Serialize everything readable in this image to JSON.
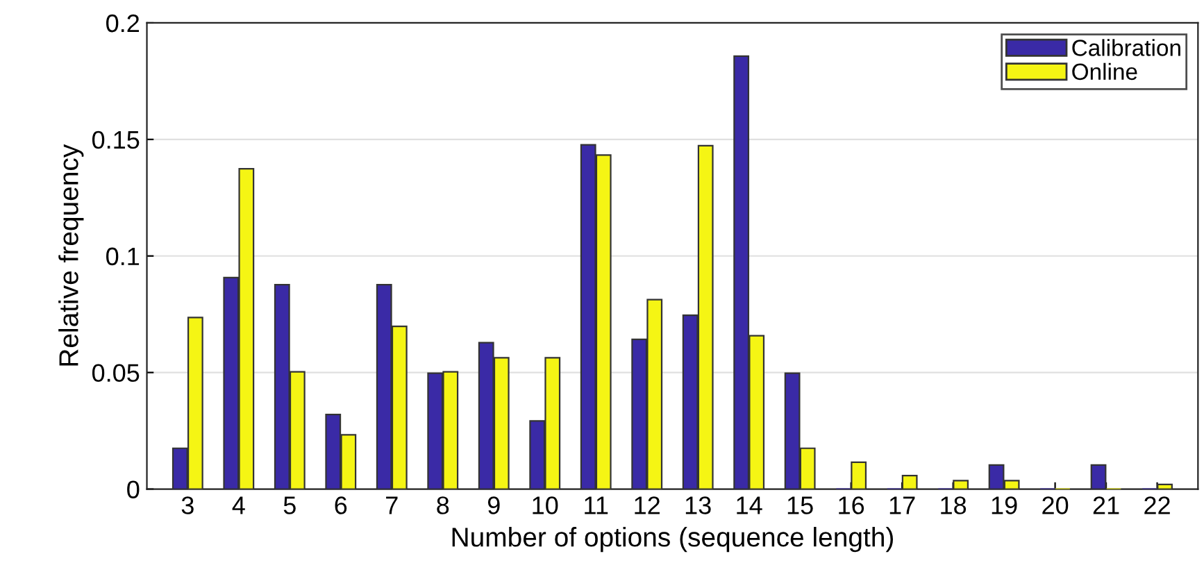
{
  "chart_data": {
    "type": "bar",
    "xlabel": "Number of options (sequence length)",
    "ylabel": "Relative frequency",
    "categories": [
      "3",
      "4",
      "5",
      "6",
      "7",
      "8",
      "9",
      "10",
      "11",
      "12",
      "13",
      "14",
      "15",
      "16",
      "17",
      "18",
      "19",
      "20",
      "21",
      "22"
    ],
    "series": [
      {
        "name": "Calibration",
        "color": "#3a2aa6",
        "values": [
          0.0175,
          0.0907,
          0.0877,
          0.032,
          0.0877,
          0.0497,
          0.0628,
          0.0292,
          0.1477,
          0.0642,
          0.0746,
          0.1857,
          0.0497,
          0,
          0,
          0,
          0.0103,
          0,
          0.0103,
          0
        ]
      },
      {
        "name": "Online",
        "color": "#f5f514",
        "values": [
          0.0736,
          0.1374,
          0.0503,
          0.0233,
          0.0698,
          0.0503,
          0.0563,
          0.0563,
          0.1433,
          0.0813,
          0.1473,
          0.0658,
          0.0175,
          0.0115,
          0.0058,
          0.0036,
          0.0036,
          0,
          0,
          0.002
        ]
      }
    ],
    "ylim": [
      0,
      0.2
    ],
    "yticks": [
      0,
      0.05,
      0.1,
      0.15,
      0.2
    ],
    "grid": "y",
    "legend": "top right"
  }
}
